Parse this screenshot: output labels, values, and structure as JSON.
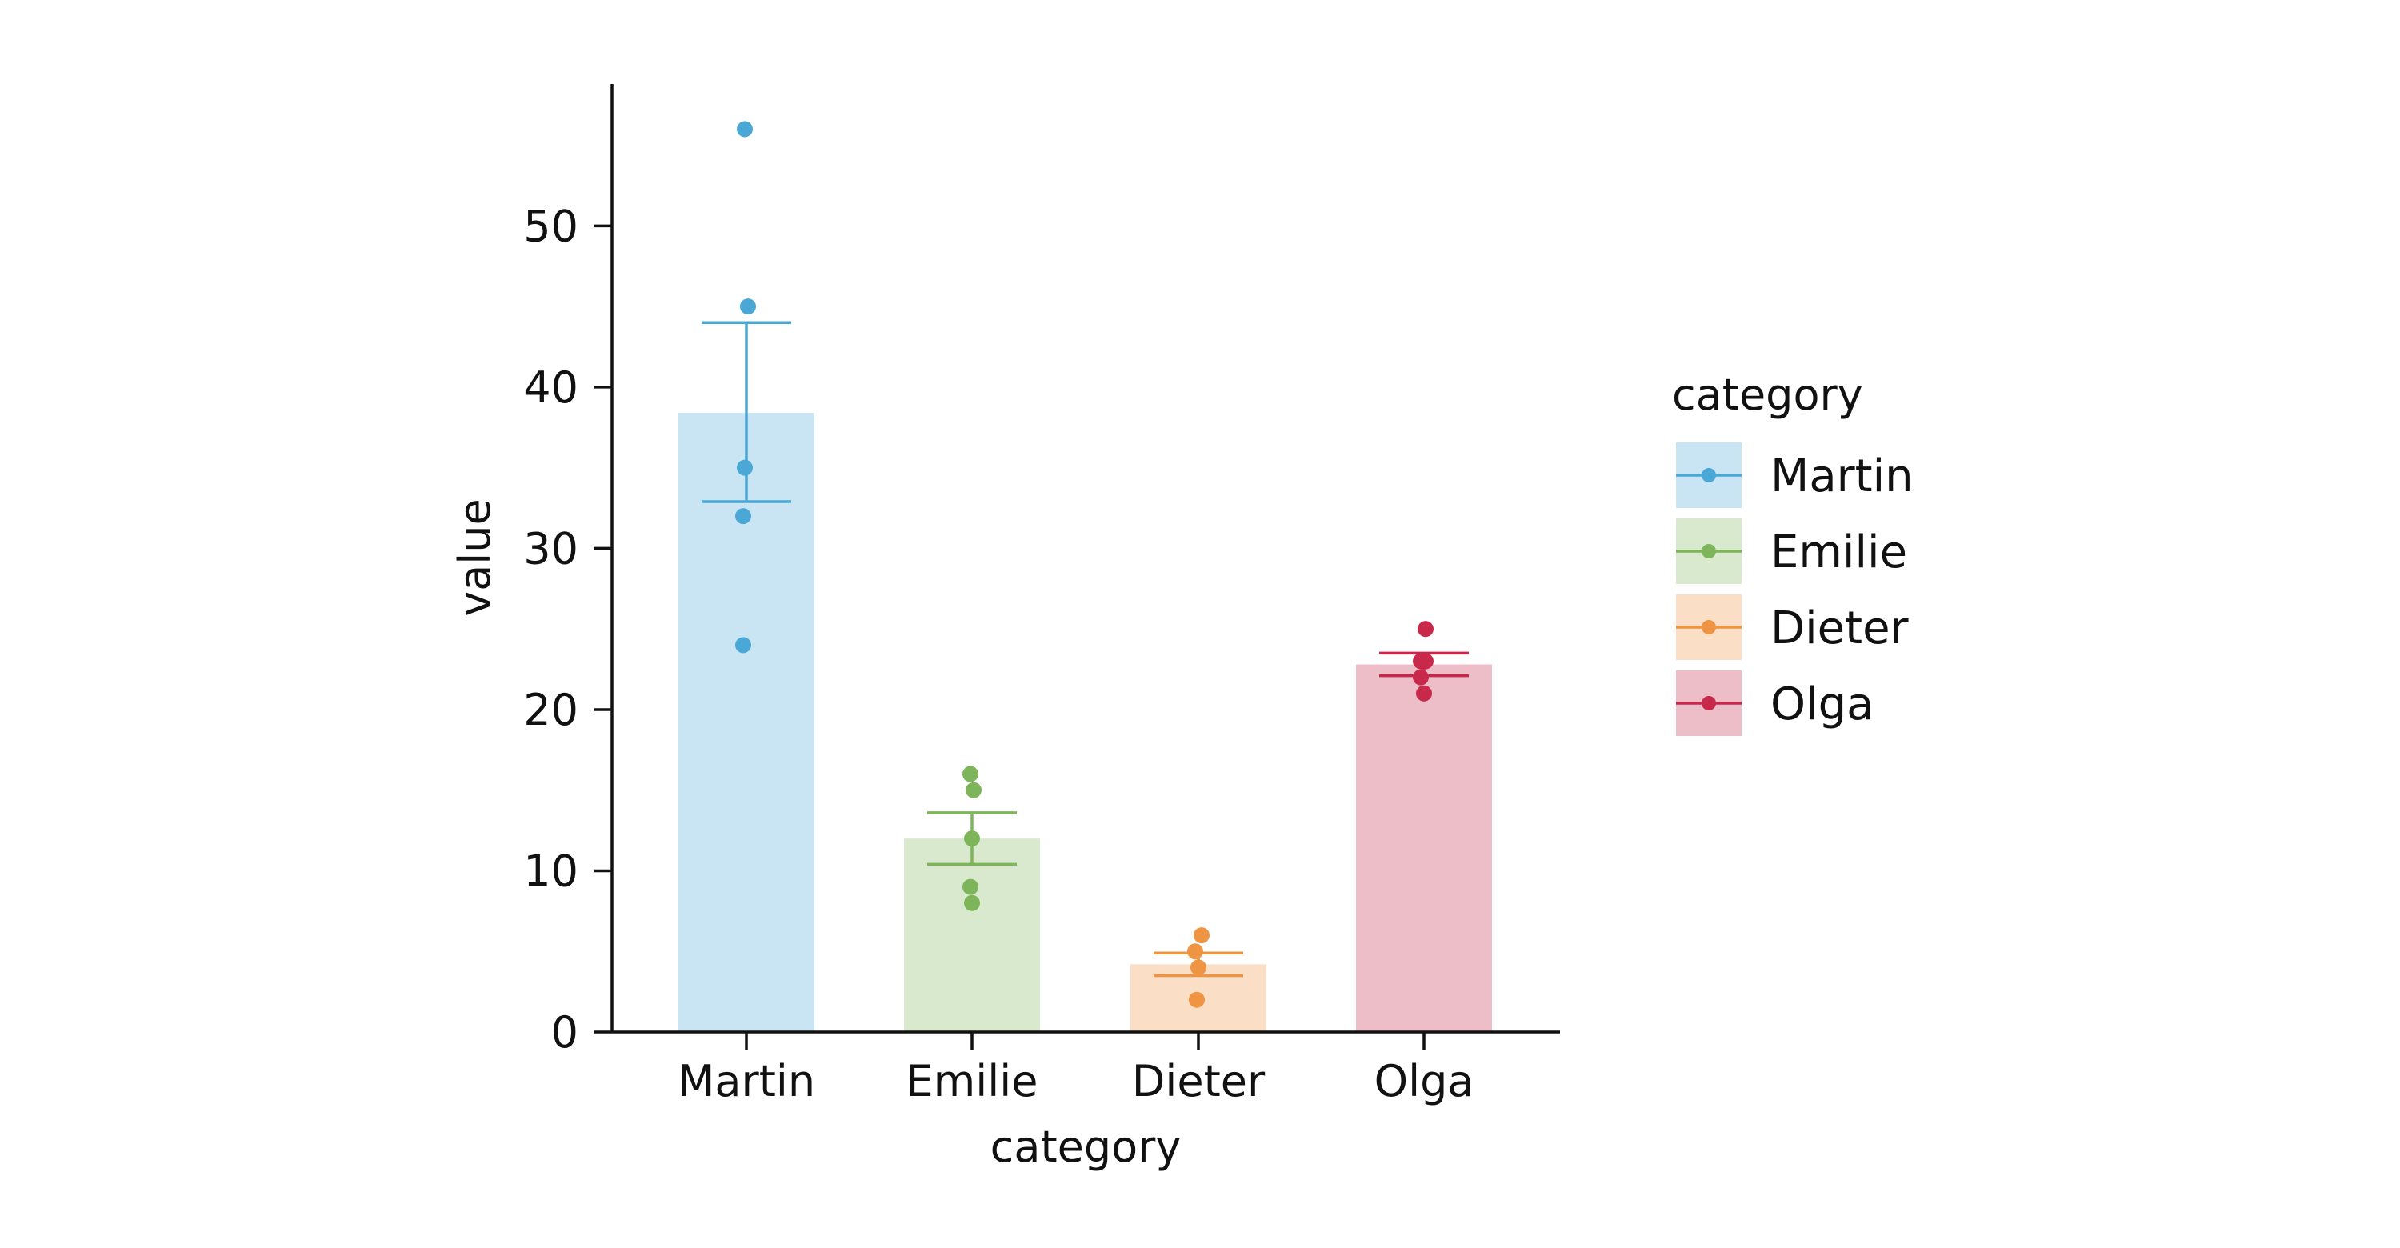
{
  "chart_data": {
    "type": "bar",
    "title": "",
    "xlabel": "category",
    "ylabel": "value",
    "ylim": [
      0,
      58.8
    ],
    "yticks": [
      0,
      10,
      20,
      30,
      40,
      50
    ],
    "grid": false,
    "legend": {
      "title": "category",
      "placement": "right"
    },
    "categories": [
      "Martin",
      "Emilie",
      "Dieter",
      "Olga"
    ],
    "series": [
      {
        "name": "Martin",
        "color": "#4BA8D6",
        "mean": 38.4,
        "error": [
          32.9,
          44.0
        ],
        "points": [
          56,
          45,
          35,
          32,
          24
        ]
      },
      {
        "name": "Emilie",
        "color": "#7FB55A",
        "mean": 12.0,
        "error": [
          10.4,
          13.6
        ],
        "points": [
          16,
          15,
          12,
          9,
          8
        ]
      },
      {
        "name": "Dieter",
        "color": "#EE9443",
        "mean": 4.2,
        "error": [
          3.5,
          4.9
        ],
        "points": [
          6,
          5,
          4,
          2
        ]
      },
      {
        "name": "Olga",
        "color": "#C8284A",
        "mean": 22.8,
        "error": [
          22.1,
          23.5
        ],
        "points": [
          25,
          23,
          23,
          22,
          21
        ]
      }
    ]
  }
}
